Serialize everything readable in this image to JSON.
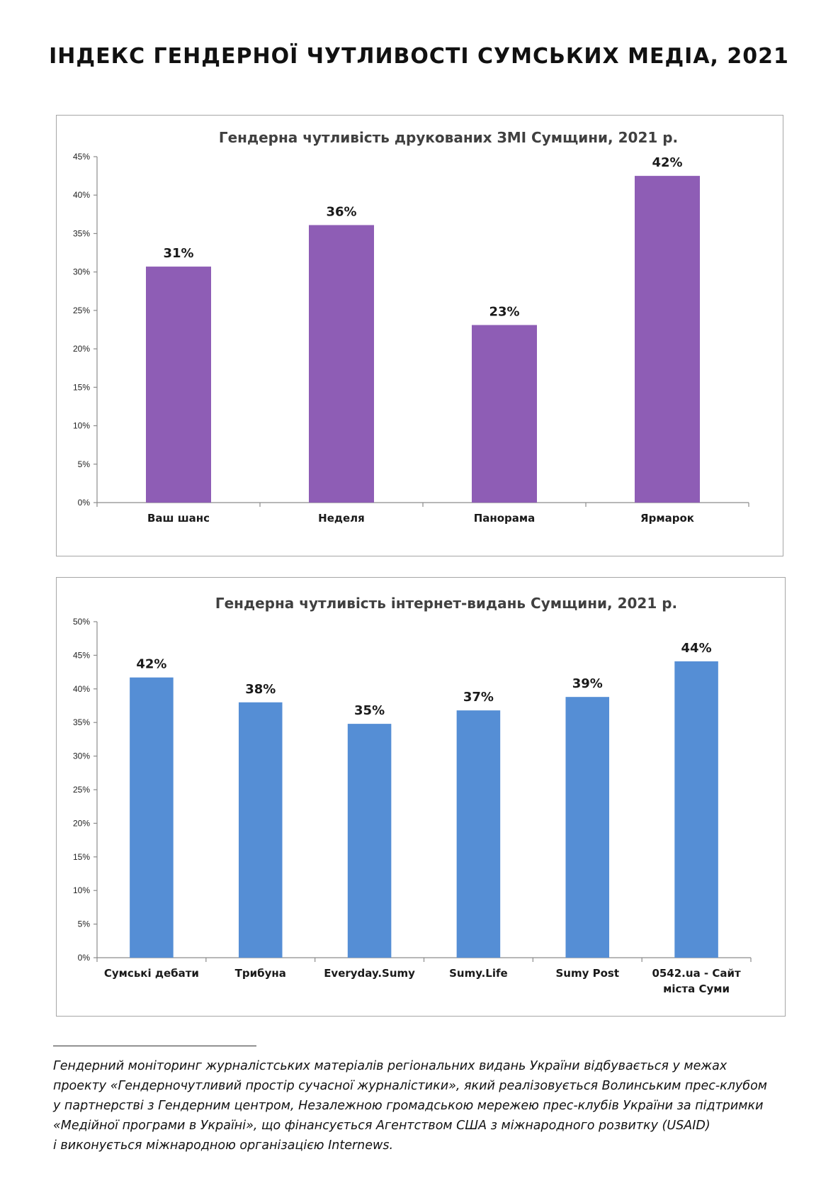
{
  "page_title": "ІНДЕКС ГЕНДЕРНОЇ ЧУТЛИВОСТІ СУМСЬКИХ МЕДІА, 2021",
  "colors": {
    "print_bars": "#8E5DB5",
    "online_bars": "#558ED5",
    "frame": "#A6A6A6"
  },
  "chart_data": [
    {
      "type": "bar",
      "title": "Гендерна чутливість друкованих ЗМІ Сумщини, 2021 р.",
      "categories": [
        "Ваш шанс",
        "Неделя",
        "Панорама",
        "Ярмарок"
      ],
      "category_lines": [
        [
          "Ваш шанс"
        ],
        [
          "Неделя"
        ],
        [
          "Панорама"
        ],
        [
          "Ярмарок"
        ]
      ],
      "values": [
        30.7,
        36.1,
        23.1,
        42.5
      ],
      "data_labels": [
        "31%",
        "36%",
        "23%",
        "42%"
      ],
      "y_ticks": [
        "0%",
        "5%",
        "10%",
        "15%",
        "20%",
        "25%",
        "30%",
        "35%",
        "40%",
        "45%"
      ],
      "ylim": [
        0,
        45
      ],
      "grid": false,
      "legend": "none",
      "color": "#8E5DB5"
    },
    {
      "type": "bar",
      "title": "Гендерна чутливість інтернет-видань Сумщини, 2021 р.",
      "categories": [
        "Сумські дебати",
        "Трибуна",
        "Everyday.Sumy",
        "Sumy.Life",
        "Sumy Post",
        "0542.ua - Сайт міста Суми"
      ],
      "category_lines": [
        [
          "Сумські дебати"
        ],
        [
          "Трибуна"
        ],
        [
          "Everyday.Sumy"
        ],
        [
          "Sumy.Life"
        ],
        [
          "Sumy Post"
        ],
        [
          "0542.ua - Сайт",
          "міста Суми"
        ]
      ],
      "values": [
        41.7,
        38.0,
        34.8,
        36.8,
        38.8,
        44.1
      ],
      "data_labels": [
        "42%",
        "38%",
        "35%",
        "37%",
        "39%",
        "44%"
      ],
      "y_ticks": [
        "0%",
        "5%",
        "10%",
        "15%",
        "20%",
        "25%",
        "30%",
        "35%",
        "40%",
        "45%",
        "50%"
      ],
      "ylim": [
        0,
        50
      ],
      "grid": false,
      "legend": "none",
      "color": "#558ED5"
    }
  ],
  "footnote": {
    "lines": [
      "Гендерний моніторинг журналістських матеріалів регіональних видань України відбувається у межах",
      "проекту «Гендерночутливий простір сучасної журналістики», який реалізовується Волинським прес-клубом",
      "у партнерстві з Гендерним центром, Незалежною громадською мережею прес-клубів України за підтримки",
      "«Медійної програми в Україні», що фінансується Агентством США з міжнародного розвитку (USAID)",
      "і виконується міжнародною організацією Internews."
    ]
  }
}
